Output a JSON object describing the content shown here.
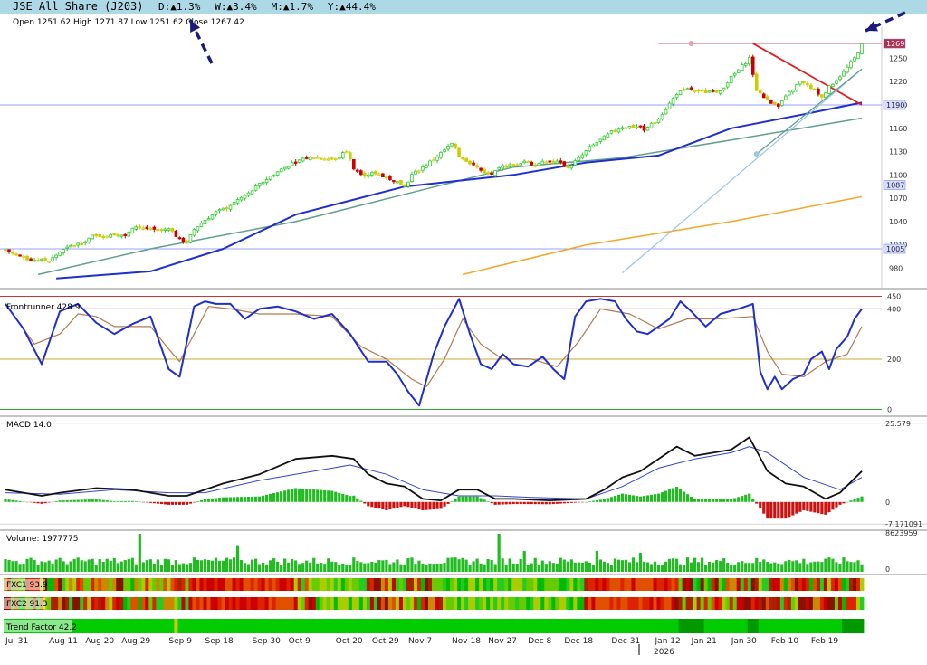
{
  "header": {
    "title": "JSE All Share (J203)",
    "changes": [
      {
        "label": "D:",
        "value": "1.3%"
      },
      {
        "label": "W:",
        "value": "3.4%"
      },
      {
        "label": "M:",
        "value": "1.7%"
      },
      {
        "label": "Y:",
        "value": "44.4%"
      }
    ],
    "ohlc": "Open 1251.62  High 1271.87  Low 1251.62  Close 1267.42"
  },
  "colors": {
    "header_bg": "#add8e6",
    "up": "#33cc33",
    "down": "#cc0000",
    "doji": "#cccc00",
    "ma_blue": "#1f2fcc",
    "ma_green": "#5f9f8f",
    "ma_orange": "#f4a62a",
    "trend_red": "#dd2222",
    "trend_light": "#9ec8e0",
    "arrow": "#1a1a7a"
  },
  "chart_data": [
    {
      "type": "candlestick",
      "panel": "price",
      "ylim": [
        955,
        1290
      ],
      "y_ticks": [
        980,
        1010,
        1040,
        1070,
        1100,
        1130,
        1160,
        1190,
        1220,
        1250
      ],
      "badges": [
        "1269",
        "1190",
        "1087",
        "1005"
      ],
      "horizontal_levels": [
        1269,
        1190,
        1087,
        1005
      ],
      "close_points": [
        [
          0,
          1004
        ],
        [
          3,
          997
        ],
        [
          6,
          992
        ],
        [
          9,
          991
        ],
        [
          12,
          989
        ],
        [
          15,
          1001
        ],
        [
          18,
          1008
        ],
        [
          21,
          1013
        ],
        [
          24,
          1021
        ],
        [
          27,
          1022
        ],
        [
          30,
          1024
        ],
        [
          33,
          1022
        ],
        [
          36,
          1034
        ],
        [
          39,
          1031
        ],
        [
          42,
          1028
        ],
        [
          45,
          1030
        ],
        [
          48,
          1018
        ],
        [
          50,
          1013
        ],
        [
          52,
          1030
        ],
        [
          55,
          1042
        ],
        [
          58,
          1052
        ],
        [
          61,
          1058
        ],
        [
          64,
          1068
        ],
        [
          67,
          1076
        ],
        [
          70,
          1088
        ],
        [
          73,
          1098
        ],
        [
          76,
          1107
        ],
        [
          79,
          1115
        ],
        [
          82,
          1121
        ],
        [
          85,
          1123
        ],
        [
          88,
          1121
        ],
        [
          91,
          1120
        ],
        [
          94,
          1131
        ],
        [
          96,
          1108
        ],
        [
          99,
          1100
        ],
        [
          102,
          1103
        ],
        [
          105,
          1097
        ],
        [
          108,
          1091
        ],
        [
          110,
          1085
        ],
        [
          112,
          1100
        ],
        [
          115,
          1110
        ],
        [
          118,
          1120
        ],
        [
          121,
          1132
        ],
        [
          123,
          1140
        ],
        [
          125,
          1125
        ],
        [
          128,
          1116
        ],
        [
          131,
          1106
        ],
        [
          134,
          1100
        ],
        [
          137,
          1111
        ],
        [
          140,
          1112
        ],
        [
          143,
          1118
        ],
        [
          146,
          1113
        ],
        [
          149,
          1117
        ],
        [
          152,
          1117
        ],
        [
          155,
          1110
        ],
        [
          158,
          1121
        ],
        [
          161,
          1135
        ],
        [
          164,
          1145
        ],
        [
          167,
          1155
        ],
        [
          170,
          1162
        ],
        [
          173,
          1162
        ],
        [
          176,
          1159
        ],
        [
          179,
          1168
        ],
        [
          182,
          1185
        ],
        [
          185,
          1205
        ],
        [
          188,
          1210
        ],
        [
          191,
          1208
        ],
        [
          194,
          1206
        ],
        [
          197,
          1208
        ],
        [
          200,
          1225
        ],
        [
          203,
          1240
        ],
        [
          205,
          1250
        ],
        [
          207,
          1210
        ],
        [
          208,
          1205
        ],
        [
          210,
          1195
        ],
        [
          213,
          1190
        ],
        [
          216,
          1205
        ],
        [
          219,
          1220
        ],
        [
          222,
          1211
        ],
        [
          225,
          1202
        ],
        [
          228,
          1218
        ],
        [
          231,
          1232
        ],
        [
          234,
          1250
        ],
        [
          236,
          1267
        ]
      ],
      "moving_average_blue": [
        [
          14,
          967
        ],
        [
          40,
          976
        ],
        [
          60,
          1005
        ],
        [
          80,
          1049
        ],
        [
          110,
          1085
        ],
        [
          140,
          1100
        ],
        [
          160,
          1116
        ],
        [
          180,
          1125
        ],
        [
          200,
          1160
        ],
        [
          220,
          1178
        ],
        [
          236,
          1193
        ]
      ],
      "moving_average_green": [
        [
          9,
          972
        ],
        [
          40,
          1005
        ],
        [
          80,
          1040
        ],
        [
          110,
          1075
        ],
        [
          140,
          1110
        ],
        [
          170,
          1122
        ],
        [
          200,
          1145
        ],
        [
          236,
          1173
        ]
      ],
      "moving_average_orange": [
        [
          126,
          972
        ],
        [
          160,
          1010
        ],
        [
          200,
          1040
        ],
        [
          236,
          1072
        ]
      ],
      "trend_lines": [
        {
          "from": [
            206,
            1269
          ],
          "to": [
            236,
            1190
          ]
        },
        {
          "from": [
            170,
            974
          ],
          "to": [
            236,
            1236
          ]
        },
        {
          "from": [
            207,
            1127
          ],
          "to": [
            236,
            1236
          ]
        }
      ]
    },
    {
      "type": "line",
      "panel": "oscillator",
      "name": "Frontrunner 428.9",
      "ylim": [
        -20,
        470
      ],
      "y_ticks": [
        0,
        200,
        400,
        450
      ],
      "levels": [
        450,
        400,
        200,
        0
      ],
      "series": [
        {
          "points": [
            [
              0,
              420
            ],
            [
              5,
              320
            ],
            [
              10,
              180
            ],
            [
              15,
              390
            ],
            [
              20,
              420
            ],
            [
              25,
              345
            ],
            [
              30,
              300
            ],
            [
              35,
              340
            ],
            [
              40,
              370
            ],
            [
              45,
              160
            ],
            [
              48,
              130
            ],
            [
              52,
              410
            ],
            [
              55,
              430
            ],
            [
              58,
              420
            ],
            [
              62,
              420
            ],
            [
              66,
              360
            ],
            [
              70,
              400
            ],
            [
              75,
              410
            ],
            [
              80,
              390
            ],
            [
              85,
              360
            ],
            [
              90,
              380
            ],
            [
              95,
              300
            ],
            [
              100,
              190
            ],
            [
              105,
              190
            ],
            [
              108,
              140
            ],
            [
              111,
              70
            ],
            [
              114,
              15
            ],
            [
              118,
              220
            ],
            [
              121,
              330
            ],
            [
              125,
              440
            ],
            [
              128,
              300
            ],
            [
              131,
              180
            ],
            [
              134,
              160
            ],
            [
              137,
              220
            ],
            [
              140,
              180
            ],
            [
              144,
              170
            ],
            [
              148,
              210
            ],
            [
              151,
              160
            ],
            [
              154,
              120
            ],
            [
              157,
              370
            ],
            [
              160,
              430
            ],
            [
              164,
              440
            ],
            [
              168,
              430
            ],
            [
              171,
              360
            ],
            [
              174,
              310
            ],
            [
              177,
              300
            ],
            [
              180,
              330
            ],
            [
              183,
              360
            ],
            [
              186,
              430
            ],
            [
              189,
              390
            ],
            [
              193,
              330
            ],
            [
              197,
              380
            ],
            [
              202,
              400
            ],
            [
              206,
              420
            ],
            [
              208,
              150
            ],
            [
              210,
              80
            ],
            [
              212,
              130
            ],
            [
              214,
              80
            ],
            [
              217,
              120
            ],
            [
              220,
              140
            ],
            [
              222,
              200
            ],
            [
              225,
              230
            ],
            [
              227,
              160
            ],
            [
              229,
              240
            ],
            [
              232,
              290
            ],
            [
              234,
              360
            ],
            [
              236,
              400
            ]
          ]
        },
        {
          "points": [
            [
              0,
              420
            ],
            [
              8,
              260
            ],
            [
              15,
              300
            ],
            [
              20,
              380
            ],
            [
              25,
              370
            ],
            [
              30,
              330
            ],
            [
              35,
              330
            ],
            [
              40,
              330
            ],
            [
              45,
              240
            ],
            [
              48,
              190
            ],
            [
              52,
              300
            ],
            [
              56,
              410
            ],
            [
              62,
              400
            ],
            [
              70,
              380
            ],
            [
              80,
              380
            ],
            [
              90,
              370
            ],
            [
              98,
              250
            ],
            [
              105,
              200
            ],
            [
              112,
              120
            ],
            [
              116,
              90
            ],
            [
              121,
              200
            ],
            [
              126,
              360
            ],
            [
              131,
              260
            ],
            [
              137,
              200
            ],
            [
              145,
              200
            ],
            [
              152,
              170
            ],
            [
              158,
              270
            ],
            [
              164,
              400
            ],
            [
              172,
              380
            ],
            [
              180,
              320
            ],
            [
              188,
              360
            ],
            [
              196,
              360
            ],
            [
              206,
              370
            ],
            [
              210,
              230
            ],
            [
              214,
              140
            ],
            [
              220,
              130
            ],
            [
              226,
              190
            ],
            [
              232,
              220
            ],
            [
              236,
              330
            ]
          ]
        }
      ]
    },
    {
      "type": "line",
      "panel": "macd",
      "name": "MACD 14.0",
      "ylim": [
        -8,
        27
      ],
      "y_ticks_labels": [
        "25.579",
        "0",
        "-7.171091"
      ],
      "series": [
        {
          "points": [
            [
              0,
              4
            ],
            [
              10,
              2
            ],
            [
              15,
              3
            ],
            [
              25,
              4.5
            ],
            [
              35,
              4
            ],
            [
              45,
              2
            ],
            [
              50,
              2
            ],
            [
              60,
              6
            ],
            [
              70,
              9
            ],
            [
              80,
              14
            ],
            [
              90,
              15
            ],
            [
              96,
              14
            ],
            [
              100,
              9
            ],
            [
              105,
              6
            ],
            [
              110,
              5
            ],
            [
              115,
              1
            ],
            [
              120,
              0.5
            ],
            [
              125,
              4
            ],
            [
              130,
              4
            ],
            [
              135,
              1
            ],
            [
              140,
              1
            ],
            [
              150,
              0.5
            ],
            [
              160,
              1
            ],
            [
              165,
              4
            ],
            [
              170,
              8
            ],
            [
              175,
              10
            ],
            [
              180,
              14
            ],
            [
              185,
              18
            ],
            [
              190,
              15
            ],
            [
              195,
              16
            ],
            [
              200,
              17
            ],
            [
              205,
              21
            ],
            [
              210,
              10
            ],
            [
              215,
              6
            ],
            [
              220,
              5
            ],
            [
              226,
              1
            ],
            [
              230,
              3
            ],
            [
              236,
              10
            ]
          ]
        },
        {
          "points": [
            [
              0,
              3
            ],
            [
              15,
              2.5
            ],
            [
              30,
              4
            ],
            [
              45,
              3
            ],
            [
              55,
              3
            ],
            [
              70,
              7
            ],
            [
              90,
              11
            ],
            [
              95,
              12
            ],
            [
              105,
              9
            ],
            [
              115,
              4
            ],
            [
              125,
              2
            ],
            [
              135,
              2
            ],
            [
              145,
              1.5
            ],
            [
              160,
              1
            ],
            [
              170,
              5
            ],
            [
              180,
              11
            ],
            [
              190,
              14
            ],
            [
              200,
              16
            ],
            [
              205,
              18
            ],
            [
              210,
              16
            ],
            [
              220,
              8
            ],
            [
              230,
              4
            ],
            [
              236,
              8
            ]
          ]
        }
      ],
      "histogram_note": "bars above and below zero"
    },
    {
      "type": "bar",
      "panel": "volume",
      "name": "Volume: 1977775",
      "y_ticks_labels": [
        "8623959",
        "0"
      ]
    }
  ],
  "heat_strips": [
    {
      "label": "FXC1 93.9"
    },
    {
      "label": "FXC2 91.3"
    },
    {
      "label": "Trend Factor 42.2"
    }
  ],
  "x_axis": {
    "labels": [
      "Jul 31",
      "Aug 11",
      "Aug 20",
      "Aug 29",
      "Sep 9",
      "Sep 18",
      "Sep 30",
      "Oct 9",
      "Oct 20",
      "Oct 29",
      "Nov 7",
      "Nov 18",
      "Nov 27",
      "Dec 8",
      "Dec 18",
      "Dec 31",
      "Jan 12",
      "Jan 21",
      "Jan 30",
      "Feb 10",
      "Feb 19"
    ],
    "year_label": "2026"
  }
}
